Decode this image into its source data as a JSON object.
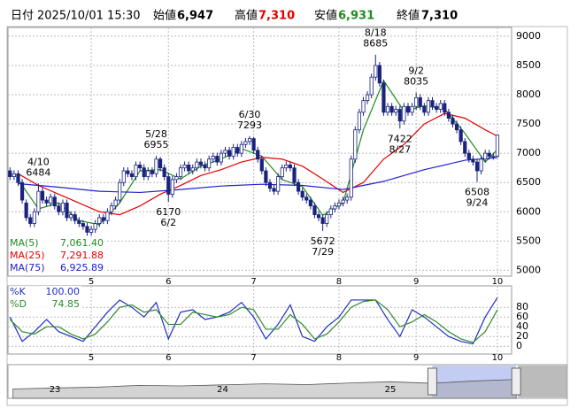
{
  "header": {
    "date_label": "日付",
    "datetime": "2025/10/01 15:30",
    "open_label": "始値",
    "open": "6,947",
    "high_label": "高値",
    "high": "7,310",
    "low_label": "安値",
    "low": "6,931",
    "close_label": "終値",
    "close": "7,310"
  },
  "chart_data": [
    {
      "type": "candlestick",
      "xlim": [
        -0.5,
        123.5
      ],
      "xticks": [
        {
          "value": 20,
          "label": "5"
        },
        {
          "value": 39,
          "label": "6"
        },
        {
          "value": 60,
          "label": "7"
        },
        {
          "value": 81,
          "label": "8"
        },
        {
          "value": 100,
          "label": "9"
        },
        {
          "value": 120,
          "label": "10"
        }
      ],
      "ylim": [
        4900,
        9150
      ],
      "yticks": [
        5000,
        5500,
        6000,
        6500,
        7000,
        7500,
        8000,
        8500,
        9000
      ],
      "grid": true,
      "candle_colors": {
        "up": "#ffffff",
        "down": "#1a237e",
        "edge": "#1a237e"
      },
      "ohlc": [
        [
          6700,
          6760,
          6540,
          6600
        ],
        [
          6600,
          6710,
          6540,
          6650
        ],
        [
          6650,
          6710,
          6440,
          6500
        ],
        [
          6500,
          6560,
          6140,
          6200
        ],
        [
          6150,
          6210,
          5840,
          5900
        ],
        [
          5900,
          5960,
          5740,
          5800
        ],
        [
          5800,
          6060,
          5740,
          6000
        ],
        [
          6000,
          6484,
          5940,
          6350
        ],
        [
          6350,
          6410,
          6140,
          6200
        ],
        [
          6200,
          6260,
          6090,
          6150
        ],
        [
          6150,
          6310,
          6090,
          6250
        ],
        [
          6250,
          6310,
          6040,
          6100
        ],
        [
          6100,
          6160,
          5940,
          6000
        ],
        [
          6000,
          6210,
          5940,
          6150
        ],
        [
          6150,
          6210,
          5840,
          5900
        ],
        [
          5900,
          6010,
          5840,
          5950
        ],
        [
          5950,
          6010,
          5790,
          5850
        ],
        [
          5850,
          5910,
          5740,
          5800
        ],
        [
          5800,
          5860,
          5690,
          5750
        ],
        [
          5750,
          5810,
          5590,
          5650
        ],
        [
          5650,
          5760,
          5590,
          5700
        ],
        [
          5700,
          5860,
          5640,
          5800
        ],
        [
          5800,
          5960,
          5740,
          5900
        ],
        [
          5900,
          5960,
          5790,
          5850
        ],
        [
          5850,
          6060,
          5790,
          6000
        ],
        [
          6000,
          6160,
          5940,
          6100
        ],
        [
          6100,
          6260,
          6040,
          6200
        ],
        [
          6200,
          6560,
          6140,
          6500
        ],
        [
          6500,
          6760,
          6440,
          6700
        ],
        [
          6700,
          6760,
          6590,
          6650
        ],
        [
          6650,
          6710,
          6540,
          6600
        ],
        [
          6600,
          6860,
          6540,
          6800
        ],
        [
          6800,
          6860,
          6690,
          6750
        ],
        [
          6750,
          6810,
          6540,
          6600
        ],
        [
          6600,
          6760,
          6540,
          6700
        ],
        [
          6700,
          6760,
          6590,
          6650
        ],
        [
          6650,
          6955,
          6590,
          6900
        ],
        [
          6900,
          6940,
          6690,
          6750
        ],
        [
          6750,
          6810,
          6540,
          6600
        ],
        [
          6600,
          6660,
          6170,
          6300
        ],
        [
          6300,
          6610,
          6240,
          6550
        ],
        [
          6550,
          6660,
          6490,
          6600
        ],
        [
          6600,
          6810,
          6540,
          6750
        ],
        [
          6750,
          6860,
          6690,
          6800
        ],
        [
          6800,
          6860,
          6640,
          6700
        ],
        [
          6700,
          6810,
          6640,
          6750
        ],
        [
          6750,
          6910,
          6690,
          6850
        ],
        [
          6850,
          6910,
          6740,
          6800
        ],
        [
          6800,
          6860,
          6690,
          6750
        ],
        [
          6750,
          6960,
          6690,
          6900
        ],
        [
          6900,
          7010,
          6840,
          6950
        ],
        [
          6950,
          7010,
          6790,
          6850
        ],
        [
          6850,
          7060,
          6790,
          7000
        ],
        [
          7000,
          7110,
          6940,
          7050
        ],
        [
          7050,
          7110,
          6890,
          6950
        ],
        [
          6950,
          7160,
          6890,
          7100
        ],
        [
          7100,
          7160,
          6940,
          7000
        ],
        [
          7000,
          7210,
          6940,
          7150
        ],
        [
          7150,
          7260,
          7090,
          7200
        ],
        [
          7200,
          7293,
          7140,
          7250
        ],
        [
          7250,
          7280,
          6990,
          7050
        ],
        [
          7050,
          7110,
          6840,
          6900
        ],
        [
          6900,
          6960,
          6640,
          6700
        ],
        [
          6700,
          6760,
          6440,
          6500
        ],
        [
          6500,
          6560,
          6340,
          6400
        ],
        [
          6400,
          6460,
          6290,
          6350
        ],
        [
          6350,
          6660,
          6290,
          6600
        ],
        [
          6600,
          6810,
          6540,
          6750
        ],
        [
          6750,
          6860,
          6690,
          6800
        ],
        [
          6800,
          6860,
          6690,
          6750
        ],
        [
          6750,
          6810,
          6440,
          6500
        ],
        [
          6500,
          6560,
          6290,
          6350
        ],
        [
          6350,
          6410,
          6190,
          6250
        ],
        [
          6250,
          6310,
          6140,
          6200
        ],
        [
          6200,
          6260,
          6040,
          6100
        ],
        [
          6100,
          6160,
          5890,
          5950
        ],
        [
          5950,
          6010,
          5840,
          5900
        ],
        [
          5900,
          5960,
          5672,
          5800
        ],
        [
          5800,
          6010,
          5740,
          5950
        ],
        [
          5950,
          6110,
          5890,
          6050
        ],
        [
          6050,
          6160,
          5990,
          6100
        ],
        [
          6100,
          6210,
          6040,
          6150
        ],
        [
          6150,
          6260,
          6090,
          6200
        ],
        [
          6200,
          6310,
          6140,
          6250
        ],
        [
          6250,
          6960,
          6190,
          6900
        ],
        [
          6900,
          7460,
          6840,
          7400
        ],
        [
          7400,
          7760,
          7340,
          7700
        ],
        [
          7700,
          7960,
          7640,
          7900
        ],
        [
          7900,
          8060,
          7840,
          8000
        ],
        [
          8000,
          8360,
          7940,
          8300
        ],
        [
          8300,
          8685,
          8240,
          8500
        ],
        [
          8500,
          8560,
          8140,
          8200
        ],
        [
          8200,
          8260,
          7640,
          7700
        ],
        [
          7700,
          7860,
          7640,
          7800
        ],
        [
          7800,
          7860,
          7640,
          7700
        ],
        [
          7700,
          7810,
          7640,
          7750
        ],
        [
          7750,
          7810,
          7422,
          7550
        ],
        [
          7550,
          7860,
          7490,
          7800
        ],
        [
          7800,
          7860,
          7640,
          7700
        ],
        [
          7700,
          7860,
          7640,
          7800
        ],
        [
          7800,
          8035,
          7740,
          7950
        ],
        [
          7950,
          8010,
          7740,
          7800
        ],
        [
          7800,
          7860,
          7640,
          7700
        ],
        [
          7700,
          7960,
          7640,
          7900
        ],
        [
          7900,
          7960,
          7740,
          7800
        ],
        [
          7800,
          7860,
          7690,
          7750
        ],
        [
          7750,
          7910,
          7690,
          7850
        ],
        [
          7850,
          7910,
          7640,
          7700
        ],
        [
          7700,
          7760,
          7540,
          7600
        ],
        [
          7600,
          7660,
          7440,
          7500
        ],
        [
          7500,
          7560,
          7340,
          7400
        ],
        [
          7400,
          7460,
          7140,
          7200
        ],
        [
          7200,
          7260,
          6940,
          7000
        ],
        [
          7000,
          7060,
          6840,
          6900
        ],
        [
          6900,
          6960,
          6790,
          6850
        ],
        [
          6850,
          6910,
          6508,
          6700
        ],
        [
          6700,
          6960,
          6640,
          6900
        ],
        [
          6900,
          7060,
          6840,
          7000
        ],
        [
          7000,
          7060,
          6890,
          6950
        ],
        [
          6950,
          7010,
          6890,
          6950
        ],
        [
          6947,
          7310,
          6931,
          7310
        ]
      ],
      "series": [
        {
          "name": "MA(5)",
          "color": "#1e8c1e",
          "x": [
            2,
            7,
            12,
            17,
            22,
            27,
            32,
            37,
            42,
            47,
            52,
            57,
            62,
            67,
            72,
            77,
            82,
            87,
            92,
            97,
            102,
            107,
            112,
            117,
            120
          ],
          "values": [
            6550,
            6050,
            6150,
            5850,
            5780,
            6150,
            6700,
            6720,
            6560,
            6780,
            6900,
            7080,
            6950,
            6550,
            6430,
            5940,
            6150,
            7400,
            8240,
            7720,
            7810,
            7760,
            7340,
            6850,
            7061.4
          ],
          "last_label": "7,061.40"
        },
        {
          "name": "MA(25)",
          "color": "#e60000",
          "x": [
            2,
            7,
            12,
            17,
            22,
            27,
            32,
            37,
            42,
            47,
            52,
            57,
            62,
            67,
            72,
            77,
            82,
            87,
            92,
            97,
            102,
            107,
            112,
            117,
            120
          ],
          "values": [
            6650,
            6450,
            6300,
            6150,
            6000,
            5950,
            6100,
            6300,
            6450,
            6620,
            6720,
            6850,
            6930,
            6900,
            6780,
            6560,
            6330,
            6500,
            6900,
            7150,
            7500,
            7680,
            7600,
            7400,
            7291.88
          ],
          "last_label": "7,291.88"
        },
        {
          "name": "MA(75)",
          "color": "#2020d0",
          "x": [
            2,
            12,
            22,
            32,
            42,
            52,
            62,
            72,
            82,
            92,
            102,
            112,
            120
          ],
          "values": [
            6480,
            6420,
            6350,
            6330,
            6380,
            6440,
            6470,
            6450,
            6380,
            6520,
            6720,
            6880,
            6925.89
          ],
          "last_label": "6,925.89"
        }
      ],
      "annotations": [
        {
          "kind": "high",
          "x": 7,
          "date": "4/10",
          "value": 6484
        },
        {
          "kind": "high",
          "x": 36,
          "date": "5/28",
          "value": 6955
        },
        {
          "kind": "low",
          "x": 39,
          "date": "6/2",
          "value": 6170
        },
        {
          "kind": "high",
          "x": 59,
          "date": "6/30",
          "value": 7293
        },
        {
          "kind": "low",
          "x": 77,
          "date": "7/29",
          "value": 5672
        },
        {
          "kind": "high",
          "x": 90,
          "date": "8/18",
          "value": 8685
        },
        {
          "kind": "low",
          "x": 96,
          "date": "8/27",
          "value": 7422
        },
        {
          "kind": "high",
          "x": 100,
          "date": "9/2",
          "value": 8035
        },
        {
          "kind": "low",
          "x": 115,
          "date": "9/24",
          "value": 6508
        }
      ]
    },
    {
      "type": "line",
      "xlim": [
        -0.5,
        123.5
      ],
      "xticks": [
        {
          "value": 20,
          "label": "5"
        },
        {
          "value": 39,
          "label": "6"
        },
        {
          "value": 60,
          "label": "7"
        },
        {
          "value": 81,
          "label": "8"
        },
        {
          "value": 100,
          "label": "9"
        },
        {
          "value": 120,
          "label": "10"
        }
      ],
      "ylim": [
        -16,
        124
      ],
      "yticks": [
        0,
        20,
        40,
        60,
        80
      ],
      "grid": true,
      "series": [
        {
          "name": "%K",
          "color": "#2030c0",
          "x": [
            0,
            3,
            6,
            9,
            12,
            15,
            18,
            21,
            24,
            27,
            30,
            33,
            36,
            39,
            42,
            45,
            48,
            51,
            54,
            57,
            60,
            63,
            66,
            69,
            72,
            75,
            78,
            81,
            84,
            87,
            90,
            93,
            96,
            99,
            102,
            105,
            108,
            111,
            114,
            117,
            120
          ],
          "values": [
            60,
            10,
            30,
            55,
            30,
            20,
            10,
            40,
            70,
            95,
            80,
            60,
            90,
            15,
            70,
            75,
            55,
            60,
            70,
            90,
            60,
            15,
            45,
            85,
            20,
            10,
            40,
            60,
            95,
            95,
            95,
            55,
            20,
            75,
            60,
            40,
            20,
            10,
            5,
            60,
            100
          ],
          "last_label": "100.00"
        },
        {
          "name": "%D",
          "color": "#2e8b2e",
          "x": [
            0,
            3,
            6,
            9,
            12,
            15,
            18,
            21,
            24,
            27,
            30,
            33,
            36,
            39,
            42,
            45,
            48,
            51,
            54,
            57,
            60,
            63,
            66,
            69,
            72,
            75,
            78,
            81,
            84,
            87,
            90,
            93,
            96,
            99,
            102,
            105,
            108,
            111,
            114,
            117,
            120
          ],
          "values": [
            55,
            30,
            25,
            40,
            40,
            25,
            15,
            25,
            50,
            80,
            85,
            70,
            75,
            45,
            45,
            70,
            65,
            60,
            65,
            80,
            75,
            35,
            35,
            65,
            45,
            15,
            25,
            50,
            80,
            92,
            95,
            75,
            40,
            50,
            65,
            50,
            30,
            15,
            8,
            30,
            74.85
          ],
          "last_label": "74.85"
        }
      ]
    },
    {
      "type": "area",
      "color": "#a0a0a0",
      "xlim": [
        2022.72,
        2026.05
      ],
      "ylim": [
        0,
        13000
      ],
      "xticks": [
        {
          "value": 2023,
          "label": "23"
        },
        {
          "value": 2024,
          "label": "24"
        },
        {
          "value": 2025,
          "label": "25"
        }
      ],
      "x": [
        2022.75,
        2023,
        2023.25,
        2023.5,
        2023.75,
        2024,
        2024.25,
        2024.5,
        2024.75,
        2025,
        2025.25,
        2025.5,
        2025.75
      ],
      "values": [
        3600,
        4000,
        4300,
        5000,
        4800,
        5200,
        5600,
        5300,
        5900,
        6400,
        5800,
        6700,
        7300
      ],
      "selection": [
        2025.25,
        2025.75
      ]
    }
  ]
}
